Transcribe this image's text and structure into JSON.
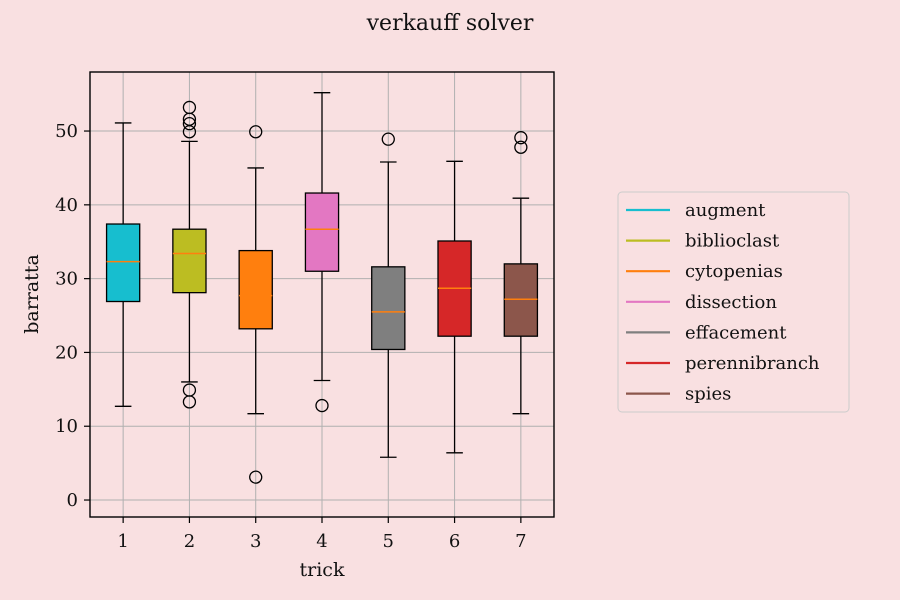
{
  "chart_data": {
    "type": "box",
    "title": "verkauff solver",
    "xlabel": "trick",
    "ylabel": "barratta",
    "ylim": [
      -2.3,
      58
    ],
    "yticks": [
      0,
      10,
      20,
      30,
      40,
      50
    ],
    "categories": [
      "1",
      "2",
      "3",
      "4",
      "5",
      "6",
      "7"
    ],
    "grid": true,
    "legend_position": "right",
    "series": [
      {
        "name": "augment",
        "color": "#17becf",
        "whisker_low": 12.7,
        "q1": 26.9,
        "median": 32.3,
        "q3": 37.4,
        "whisker_high": 51.1,
        "outliers": []
      },
      {
        "name": "biblioclast",
        "color": "#bcbd22",
        "whisker_low": 16.0,
        "q1": 28.1,
        "median": 33.4,
        "q3": 36.7,
        "whisker_high": 48.6,
        "outliers": [
          13.3,
          14.9,
          49.9,
          51.0,
          51.6,
          53.2
        ]
      },
      {
        "name": "cytopenias",
        "color": "#ff7f0e",
        "whisker_low": 11.7,
        "q1": 23.2,
        "median": 27.7,
        "q3": 33.8,
        "whisker_high": 45.0,
        "outliers": [
          3.1,
          49.9
        ]
      },
      {
        "name": "dissection",
        "color": "#e377c2",
        "whisker_low": 16.2,
        "q1": 31.0,
        "median": 36.7,
        "q3": 41.6,
        "whisker_high": 55.2,
        "outliers": [
          12.8
        ]
      },
      {
        "name": "effacement",
        "color": "#7f7f7f",
        "whisker_low": 5.8,
        "q1": 20.4,
        "median": 25.5,
        "q3": 31.6,
        "whisker_high": 45.8,
        "outliers": [
          48.9
        ]
      },
      {
        "name": "perennibranch",
        "color": "#d62728",
        "whisker_low": 6.4,
        "q1": 22.2,
        "median": 28.7,
        "q3": 35.1,
        "whisker_high": 45.9,
        "outliers": []
      },
      {
        "name": "spies",
        "color": "#8c564b",
        "whisker_low": 11.7,
        "q1": 22.2,
        "median": 27.2,
        "q3": 32.0,
        "whisker_high": 40.9,
        "outliers": [
          47.8,
          49.1
        ]
      }
    ]
  }
}
